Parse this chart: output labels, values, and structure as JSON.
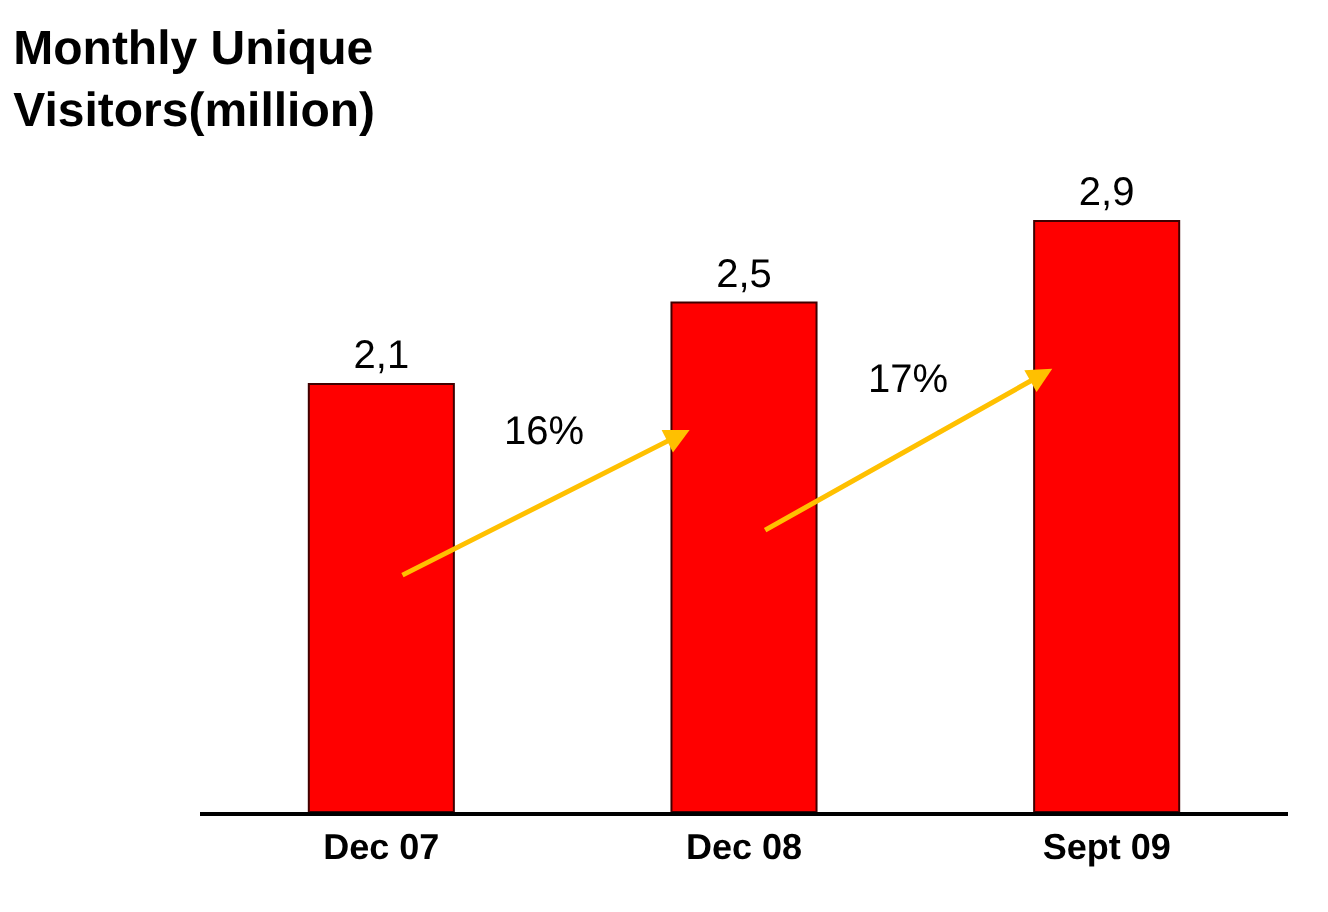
{
  "chart_data": {
    "type": "bar",
    "title": "Monthly Unique\nVisitors(million)",
    "categories": [
      "Dec 07",
      "Dec 08",
      "Sept 09"
    ],
    "values": [
      2.1,
      2.5,
      2.9
    ],
    "value_labels": [
      "2,1",
      "2,5",
      "2,9"
    ],
    "color": "#ff0000",
    "tick_labels": "x",
    "annotations": [
      "16%",
      "17%"
    ]
  }
}
